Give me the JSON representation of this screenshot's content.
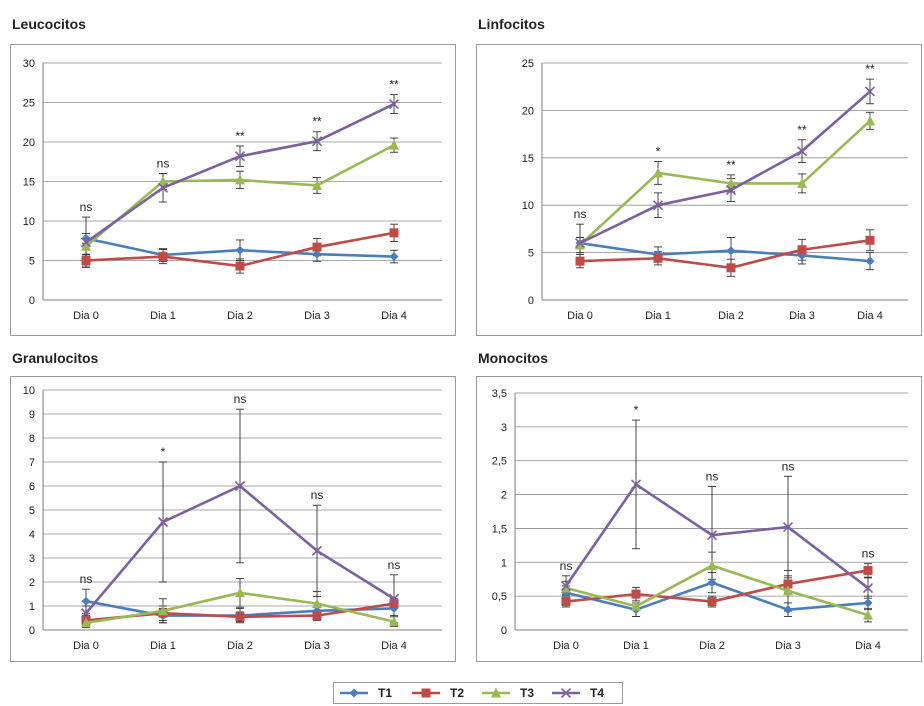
{
  "chart_data": [
    {
      "type": "line",
      "title": "Leucocitos",
      "categories": [
        "Dia 0",
        "Dia 1",
        "Dia 2",
        "Dia 3",
        "Dia 4"
      ],
      "ylim": [
        0,
        30
      ],
      "yticks": [
        "0",
        "5",
        "10",
        "15",
        "20",
        "25",
        "30"
      ],
      "series": [
        {
          "name": "T1",
          "values": [
            7.8,
            5.7,
            6.3,
            5.8,
            5.5
          ],
          "err": [
            0.6,
            0.8,
            1.3,
            0.9,
            0.8
          ]
        },
        {
          "name": "T2",
          "values": [
            5.0,
            5.5,
            4.3,
            6.7,
            8.5
          ],
          "err": [
            0.7,
            0.9,
            0.9,
            1.1,
            1.1
          ]
        },
        {
          "name": "T3",
          "values": [
            6.8,
            15.0,
            15.2,
            14.5,
            19.6
          ],
          "err": [
            1.0,
            1.0,
            1.1,
            1.0,
            0.9
          ]
        },
        {
          "name": "T4",
          "values": [
            7.3,
            14.2,
            18.2,
            20.1,
            24.8
          ],
          "err": [
            3.2,
            1.8,
            1.3,
            1.2,
            1.2
          ]
        }
      ],
      "annotations": [
        "ns",
        "ns",
        "**",
        "**",
        "**"
      ],
      "grid": true
    },
    {
      "type": "line",
      "title": "Linfocitos",
      "categories": [
        "Dia 0",
        "Dia 1",
        "Dia 2",
        "Dia 3",
        "Dia 4"
      ],
      "ylim": [
        0,
        25
      ],
      "yticks": [
        "0",
        "5",
        "10",
        "15",
        "20",
        "25"
      ],
      "series": [
        {
          "name": "T1",
          "values": [
            6.0,
            4.8,
            5.2,
            4.7,
            4.1
          ],
          "err": [
            0.6,
            0.8,
            1.4,
            0.9,
            0.9
          ]
        },
        {
          "name": "T2",
          "values": [
            4.1,
            4.4,
            3.4,
            5.3,
            6.3
          ],
          "err": [
            0.7,
            0.7,
            0.9,
            1.1,
            1.1
          ]
        },
        {
          "name": "T3",
          "values": [
            5.8,
            13.4,
            12.3,
            12.3,
            18.9
          ],
          "err": [
            0.8,
            1.2,
            0.9,
            1.0,
            0.9
          ]
        },
        {
          "name": "T4",
          "values": [
            6.0,
            10.0,
            11.6,
            15.7,
            22.0
          ],
          "err": [
            2.0,
            1.3,
            1.2,
            1.2,
            1.3
          ]
        }
      ],
      "annotations": [
        "ns",
        "*",
        "**",
        "**",
        "**"
      ],
      "grid": true
    },
    {
      "type": "line",
      "title": "Granulocitos",
      "categories": [
        "Dia 0",
        "Dia 1",
        "Dia 2",
        "Dia 3",
        "Dia 4"
      ],
      "ylim": [
        0,
        10
      ],
      "yticks": [
        "0",
        "1",
        "2",
        "3",
        "4",
        "5",
        "6",
        "7",
        "8",
        "9",
        "10"
      ],
      "series": [
        {
          "name": "T1",
          "values": [
            1.2,
            0.6,
            0.6,
            0.8,
            0.9
          ],
          "err": [
            0.5,
            0.3,
            0.3,
            0.3,
            0.3
          ]
        },
        {
          "name": "T2",
          "values": [
            0.4,
            0.7,
            0.55,
            0.6,
            1.1
          ],
          "err": [
            0.2,
            0.3,
            0.2,
            0.2,
            0.2
          ]
        },
        {
          "name": "T3",
          "values": [
            0.3,
            0.8,
            1.55,
            1.1,
            0.35
          ],
          "err": [
            0.2,
            0.5,
            0.6,
            0.5,
            0.2
          ]
        },
        {
          "name": "T4",
          "values": [
            0.7,
            4.5,
            6.0,
            3.3,
            1.3
          ],
          "err": [
            0.3,
            2.5,
            3.2,
            1.9,
            1.0
          ]
        }
      ],
      "annotations": [
        "ns",
        "*",
        "ns",
        "ns",
        "ns"
      ],
      "grid": true
    },
    {
      "type": "line",
      "title": "Monocitos",
      "categories": [
        "Dia 0",
        "Dia 1",
        "Dia 2",
        "Dia 3",
        "Dia 4"
      ],
      "ylim": [
        0,
        3.5
      ],
      "yticks": [
        "0",
        "0,5",
        "1",
        "1,5",
        "2",
        "2,5",
        "3",
        "3,5"
      ],
      "series": [
        {
          "name": "T1",
          "values": [
            0.55,
            0.3,
            0.7,
            0.3,
            0.4
          ],
          "err": [
            0.1,
            0.1,
            0.15,
            0.1,
            0.1
          ]
        },
        {
          "name": "T2",
          "values": [
            0.42,
            0.53,
            0.42,
            0.68,
            0.88
          ],
          "err": [
            0.08,
            0.1,
            0.08,
            0.12,
            0.1
          ]
        },
        {
          "name": "T3",
          "values": [
            0.62,
            0.35,
            0.95,
            0.58,
            0.22
          ],
          "err": [
            0.1,
            0.15,
            0.2,
            0.3,
            0.1
          ]
        },
        {
          "name": "T4",
          "values": [
            0.65,
            2.15,
            1.4,
            1.52,
            0.62
          ],
          "err": [
            0.15,
            0.95,
            0.72,
            0.75,
            0.15
          ]
        }
      ],
      "annotations": [
        "ns",
        "*",
        "ns",
        "ns",
        "ns"
      ],
      "grid": true
    }
  ],
  "legend": [
    {
      "name": "T1",
      "color": "#4a7ebb",
      "marker": "diamond"
    },
    {
      "name": "T2",
      "color": "#be4b48",
      "marker": "square"
    },
    {
      "name": "T3",
      "color": "#98b954",
      "marker": "triangle"
    },
    {
      "name": "T4",
      "color": "#7d60a0",
      "marker": "x"
    }
  ]
}
